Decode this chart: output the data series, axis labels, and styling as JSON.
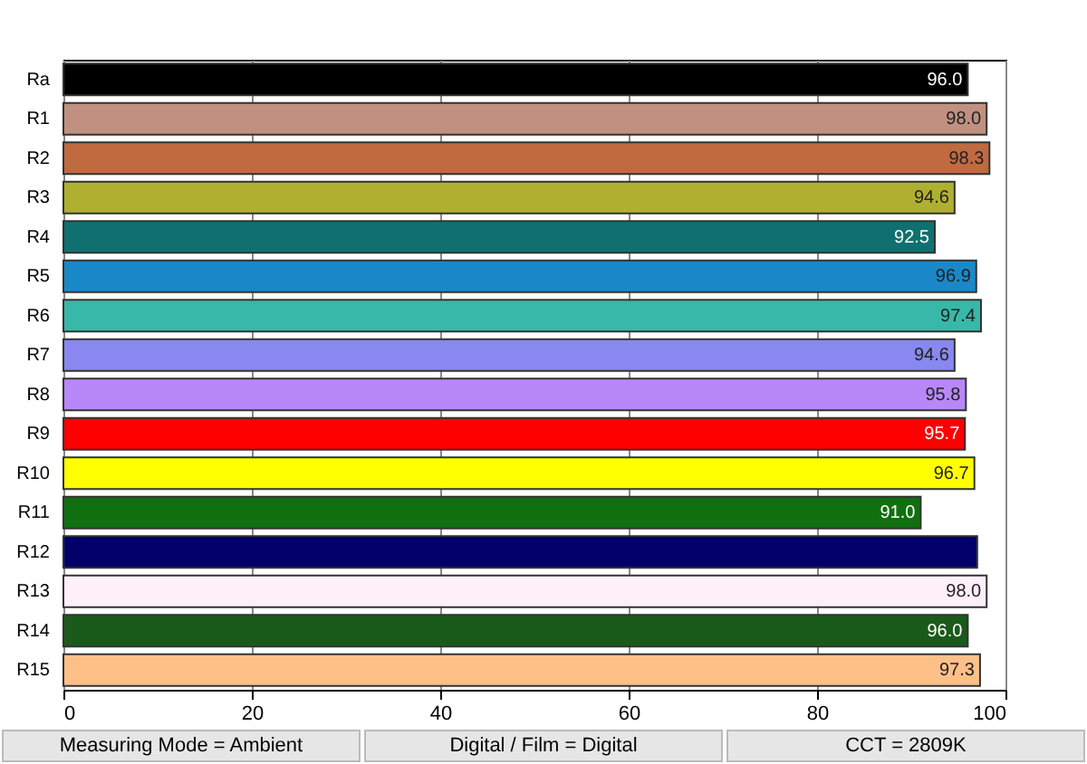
{
  "chart_data": {
    "type": "bar",
    "orientation": "horizontal",
    "categories": [
      "Ra",
      "R1",
      "R2",
      "R3",
      "R4",
      "R5",
      "R6",
      "R7",
      "R8",
      "R9",
      "R10",
      "R11",
      "R12",
      "R13",
      "R14",
      "R15"
    ],
    "values": [
      96.0,
      98.0,
      98.3,
      94.6,
      92.5,
      96.9,
      97.4,
      94.6,
      95.8,
      95.7,
      96.7,
      91.0,
      97.0,
      98.0,
      96.0,
      97.3
    ],
    "value_labels": [
      "96.0",
      "98.0",
      "98.3",
      "94.6",
      "92.5",
      "96.9",
      "97.4",
      "94.6",
      "95.8",
      "95.7",
      "96.7",
      "91.0",
      null,
      "98.0",
      "96.0",
      "97.3"
    ],
    "colors": [
      "#000000",
      "#c09080",
      "#c06a40",
      "#b0b030",
      "#107070",
      "#1a88c8",
      "#38b8a8",
      "#8888f0",
      "#b888f8",
      "#ff0000",
      "#ffff00",
      "#107010",
      "#000068",
      "#fff0f8",
      "#1a5a1a",
      "#ffc088"
    ],
    "xlim": [
      0,
      100
    ],
    "xticks": [
      0,
      20,
      40,
      60,
      80,
      100
    ],
    "grid": "x",
    "annotations": [
      "Measuring Mode = Ambient",
      "Digital / Film = Digital",
      "CCT = 2809K"
    ]
  }
}
